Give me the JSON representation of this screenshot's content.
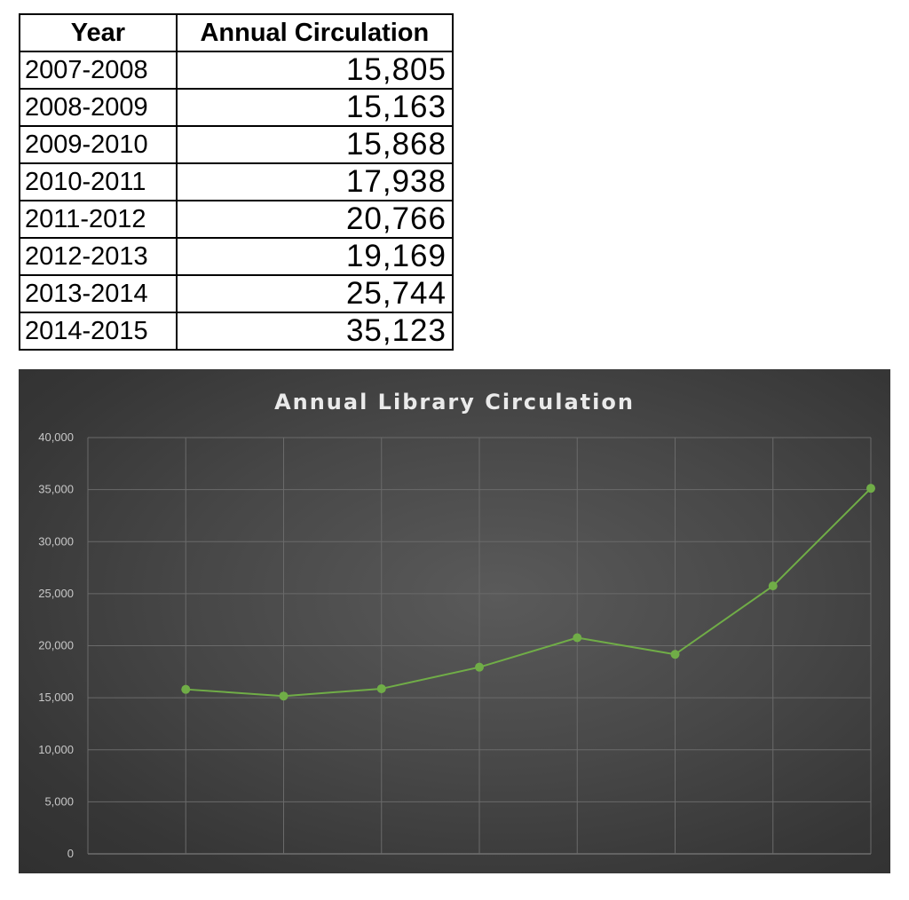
{
  "table": {
    "headers": [
      "Year",
      "Annual Circulation"
    ],
    "rows": [
      {
        "year": "2007-2008",
        "value": "15,805"
      },
      {
        "year": "2008-2009",
        "value": "15,163"
      },
      {
        "year": "2009-2010",
        "value": "15,868"
      },
      {
        "year": "2010-2011",
        "value": "17,938"
      },
      {
        "year": "2011-2012",
        "value": "20,766"
      },
      {
        "year": "2012-2013",
        "value": "19,169"
      },
      {
        "year": "2013-2014",
        "value": "25,744"
      },
      {
        "year": "2014-2015",
        "value": "35,123"
      }
    ]
  },
  "chart_data": {
    "type": "line",
    "title": "Annual Library Circulation",
    "xlabel": "",
    "ylabel": "",
    "categories": [
      "2007-2008",
      "2008-2009",
      "2009-2010",
      "2010-2011",
      "2011-2012",
      "2012-2013",
      "2013-2014",
      "2014-2015"
    ],
    "category_labels_shown": false,
    "series": [
      {
        "values": [
          15805,
          15163,
          15868,
          17938,
          20766,
          19169,
          25744,
          35123
        ],
        "color": "#70ad47"
      }
    ],
    "ylim": [
      0,
      40000
    ],
    "yticks": [
      0,
      5000,
      10000,
      15000,
      20000,
      25000,
      30000,
      35000,
      40000
    ],
    "ytick_labels": [
      "0",
      "5,000",
      "10,000",
      "15,000",
      "20,000",
      "25,000",
      "30,000",
      "35,000",
      "40,000"
    ],
    "grid": true,
    "legend": "none",
    "background": "#474747",
    "gridline_color": "#6a6a6a",
    "marker": "circle"
  }
}
